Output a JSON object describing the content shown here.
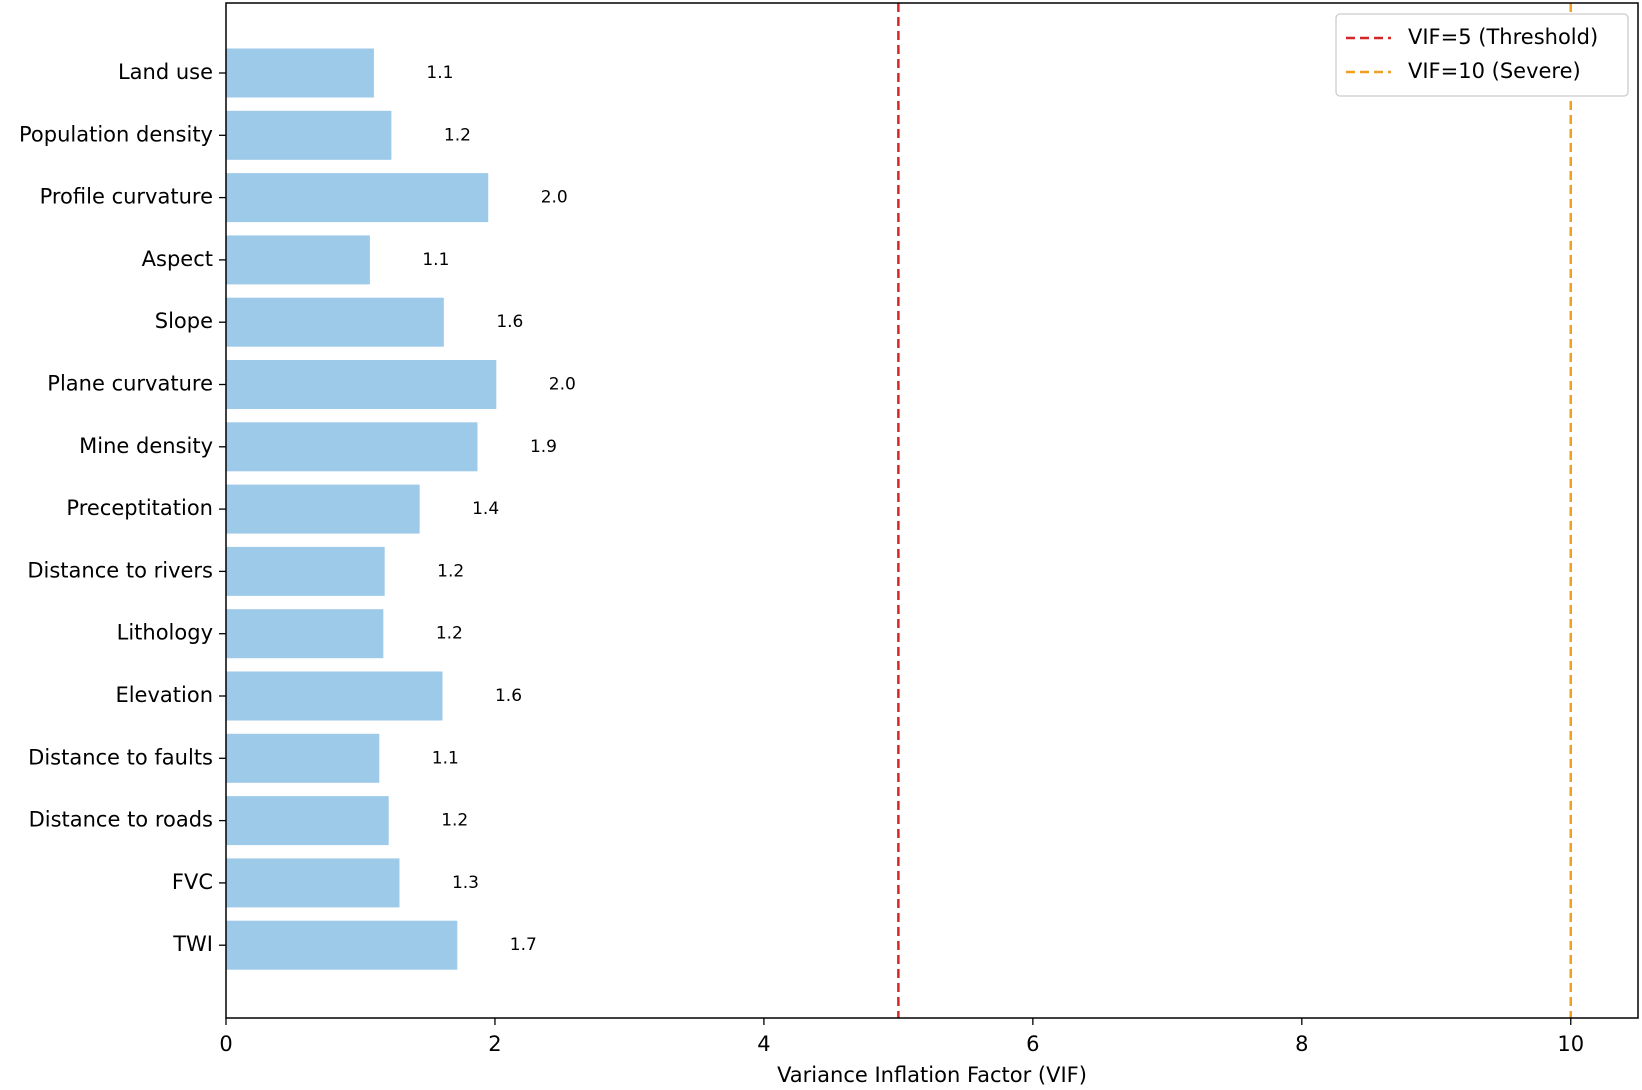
{
  "chart_data": {
    "type": "barh",
    "x_label": "Variance Inflation Factor (VIF)",
    "categories": [
      "Land use",
      "Population density",
      "Profile curvature",
      "Aspect",
      "Slope",
      "Plane curvature",
      "Mine density",
      "Preceptitation",
      "Distance to rivers",
      "Lithology",
      "Elevation",
      "Distance to faults",
      "Distance to roads",
      "FVC",
      "TWI"
    ],
    "values": [
      1.1,
      1.23,
      1.95,
      1.07,
      1.62,
      2.01,
      1.87,
      1.44,
      1.18,
      1.17,
      1.61,
      1.14,
      1.21,
      1.29,
      1.72
    ],
    "value_labels": [
      "1.1",
      "1.2",
      "2.0",
      "1.1",
      "1.6",
      "2.0",
      "1.9",
      "1.4",
      "1.2",
      "1.2",
      "1.6",
      "1.1",
      "1.2",
      "1.3",
      "1.7"
    ],
    "color": "#9ecae9",
    "xlim": [
      0,
      10.5
    ],
    "xticks": [
      0,
      2,
      4,
      6,
      8,
      10
    ],
    "reference_lines": [
      {
        "name": "VIF=5 (Threshold)",
        "value": 5,
        "color": "#d62728"
      },
      {
        "name": "VIF=10 (Severe)",
        "value": 10,
        "color": "#f0a020"
      }
    ],
    "legend": "upper right"
  }
}
